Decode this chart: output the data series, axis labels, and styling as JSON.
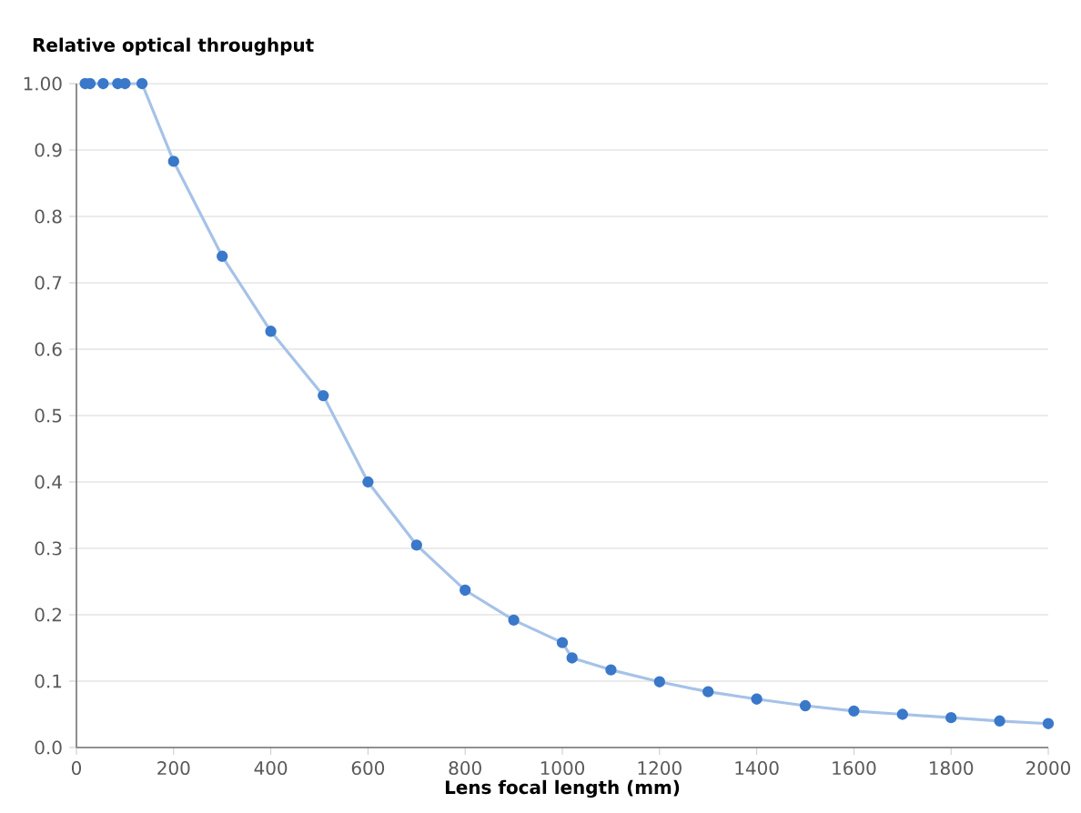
{
  "chart_data": {
    "type": "line",
    "xlabel": "Lens focal length (mm)",
    "ylabel": "Relative optical throughput",
    "x": [
      18,
      28,
      55,
      85,
      100,
      135,
      200,
      300,
      400,
      508,
      600,
      700,
      800,
      900,
      1000,
      1020,
      1100,
      1200,
      1300,
      1400,
      1500,
      1600,
      1700,
      1800,
      1900,
      2000
    ],
    "series": [
      {
        "color": "#3a78c9",
        "values": [
          1.0,
          1.0,
          1.0,
          1.0,
          1.0,
          1.0,
          0.883,
          0.74,
          0.627,
          0.53,
          0.4,
          0.305,
          0.237,
          0.192,
          0.158,
          0.135,
          0.117,
          0.099,
          0.084,
          0.073,
          0.063,
          0.055,
          0.05,
          0.045,
          0.04,
          0.036
        ]
      }
    ],
    "xlim": [
      0,
      2000
    ],
    "ylim": [
      0,
      1
    ],
    "xticks": [
      0,
      200,
      400,
      600,
      800,
      1000,
      1200,
      1400,
      1600,
      1800,
      2000
    ],
    "yticks": [
      {
        "value": 0,
        "label": "0.0"
      },
      0.1,
      0.2,
      0.3,
      0.4,
      0.5,
      0.6,
      0.7,
      0.8,
      0.9,
      {
        "value": 1,
        "label": "1.00"
      }
    ],
    "grid": "y",
    "marker": "circle",
    "line_style": "solid"
  }
}
